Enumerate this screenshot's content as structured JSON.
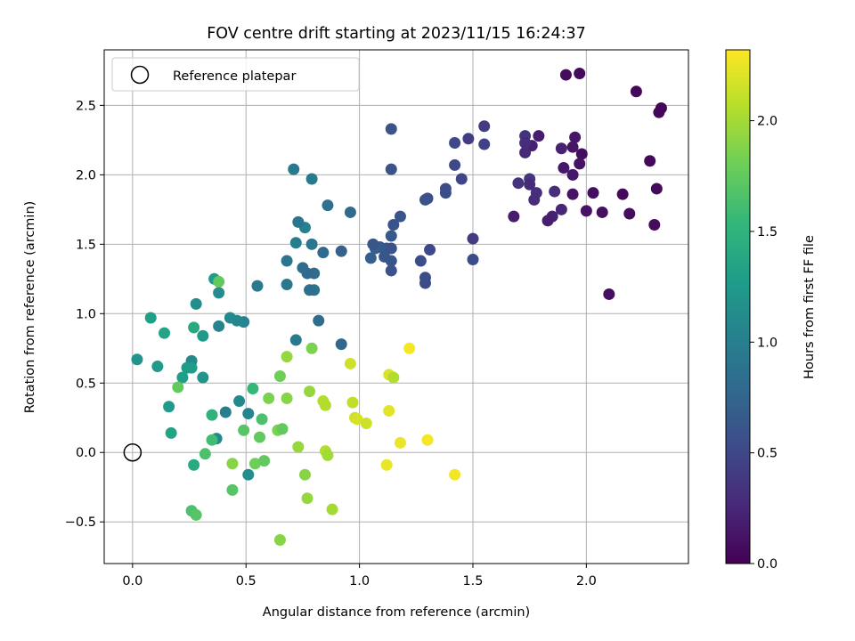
{
  "chart_data": {
    "type": "scatter",
    "title": "FOV centre drift starting at 2023/11/15 16:24:37",
    "xlabel": "Angular distance from reference (arcmin)",
    "ylabel": "Rotation from reference (arcmin)",
    "xlim": [
      -0.125,
      2.45
    ],
    "ylim": [
      -0.8,
      2.9
    ],
    "xticks": [
      0.0,
      0.5,
      1.0,
      1.5,
      2.0
    ],
    "xtick_labels": [
      "0.0",
      "0.5",
      "1.0",
      "1.5",
      "2.0"
    ],
    "yticks": [
      -0.5,
      0.0,
      0.5,
      1.0,
      1.5,
      2.0,
      2.5
    ],
    "ytick_labels": [
      "−0.5",
      "0.0",
      "0.5",
      "1.0",
      "1.5",
      "2.0",
      "2.5"
    ],
    "grid": true,
    "legend": {
      "position": "top-left",
      "entries": [
        {
          "label": "Reference platepar",
          "marker": "open-circle"
        }
      ]
    },
    "reference_point": {
      "x": 0.0,
      "y": 0.0
    },
    "colorbar": {
      "label": "Hours from first FF file",
      "colormap": "viridis",
      "range": [
        0.0,
        2.32
      ],
      "ticks": [
        0.0,
        0.5,
        1.0,
        1.5,
        2.0
      ],
      "tick_labels": [
        "0.0",
        "0.5",
        "1.0",
        "1.5",
        "2.0"
      ]
    },
    "points": [
      {
        "x": 2.33,
        "y": 2.48,
        "h": 0.02
      },
      {
        "x": 2.32,
        "y": 2.45,
        "h": 0.03
      },
      {
        "x": 2.22,
        "y": 2.6,
        "h": 0.04
      },
      {
        "x": 1.97,
        "y": 2.73,
        "h": 0.06
      },
      {
        "x": 1.91,
        "y": 2.72,
        "h": 0.07
      },
      {
        "x": 2.28,
        "y": 2.1,
        "h": 0.05
      },
      {
        "x": 2.31,
        "y": 1.9,
        "h": 0.06
      },
      {
        "x": 2.3,
        "y": 1.64,
        "h": 0.07
      },
      {
        "x": 2.19,
        "y": 1.72,
        "h": 0.08
      },
      {
        "x": 2.16,
        "y": 1.86,
        "h": 0.06
      },
      {
        "x": 2.1,
        "y": 1.14,
        "h": 0.09
      },
      {
        "x": 2.07,
        "y": 1.73,
        "h": 0.1
      },
      {
        "x": 2.03,
        "y": 1.87,
        "h": 0.09
      },
      {
        "x": 2.0,
        "y": 1.74,
        "h": 0.12
      },
      {
        "x": 1.98,
        "y": 2.15,
        "h": 0.08
      },
      {
        "x": 1.97,
        "y": 2.08,
        "h": 0.11
      },
      {
        "x": 1.95,
        "y": 2.27,
        "h": 0.14
      },
      {
        "x": 1.94,
        "y": 2.2,
        "h": 0.13
      },
      {
        "x": 1.94,
        "y": 2.0,
        "h": 0.15
      },
      {
        "x": 1.94,
        "y": 1.86,
        "h": 0.12
      },
      {
        "x": 1.9,
        "y": 2.05,
        "h": 0.15
      },
      {
        "x": 1.89,
        "y": 2.19,
        "h": 0.22
      },
      {
        "x": 1.89,
        "y": 1.75,
        "h": 0.25
      },
      {
        "x": 1.86,
        "y": 1.88,
        "h": 0.3
      },
      {
        "x": 1.85,
        "y": 1.7,
        "h": 0.22
      },
      {
        "x": 1.83,
        "y": 1.67,
        "h": 0.2
      },
      {
        "x": 1.79,
        "y": 2.28,
        "h": 0.18
      },
      {
        "x": 1.78,
        "y": 1.87,
        "h": 0.32
      },
      {
        "x": 1.77,
        "y": 1.82,
        "h": 0.3
      },
      {
        "x": 1.76,
        "y": 2.21,
        "h": 0.21
      },
      {
        "x": 1.75,
        "y": 1.97,
        "h": 0.36
      },
      {
        "x": 1.75,
        "y": 1.93,
        "h": 0.28
      },
      {
        "x": 1.73,
        "y": 2.16,
        "h": 0.26
      },
      {
        "x": 1.73,
        "y": 2.28,
        "h": 0.35
      },
      {
        "x": 1.73,
        "y": 2.23,
        "h": 0.3
      },
      {
        "x": 1.7,
        "y": 1.94,
        "h": 0.35
      },
      {
        "x": 1.68,
        "y": 1.7,
        "h": 0.18
      },
      {
        "x": 1.55,
        "y": 2.35,
        "h": 0.42
      },
      {
        "x": 1.55,
        "y": 2.22,
        "h": 0.45
      },
      {
        "x": 1.5,
        "y": 1.54,
        "h": 0.4
      },
      {
        "x": 1.5,
        "y": 1.39,
        "h": 0.52
      },
      {
        "x": 1.48,
        "y": 2.26,
        "h": 0.42
      },
      {
        "x": 1.45,
        "y": 1.97,
        "h": 0.48
      },
      {
        "x": 1.42,
        "y": 2.07,
        "h": 0.5
      },
      {
        "x": 1.42,
        "y": 2.23,
        "h": 0.5
      },
      {
        "x": 1.38,
        "y": 1.9,
        "h": 0.52
      },
      {
        "x": 1.38,
        "y": 1.87,
        "h": 0.55
      },
      {
        "x": 1.3,
        "y": 1.83,
        "h": 0.53
      },
      {
        "x": 1.29,
        "y": 1.82,
        "h": 0.58
      },
      {
        "x": 1.31,
        "y": 1.46,
        "h": 0.5
      },
      {
        "x": 1.29,
        "y": 1.26,
        "h": 0.55
      },
      {
        "x": 1.29,
        "y": 1.22,
        "h": 0.52
      },
      {
        "x": 1.27,
        "y": 1.38,
        "h": 0.55
      },
      {
        "x": 1.18,
        "y": 1.7,
        "h": 0.62
      },
      {
        "x": 1.15,
        "y": 1.64,
        "h": 0.6
      },
      {
        "x": 1.14,
        "y": 2.33,
        "h": 0.58
      },
      {
        "x": 1.14,
        "y": 2.04,
        "h": 0.58
      },
      {
        "x": 1.14,
        "y": 1.56,
        "h": 0.65
      },
      {
        "x": 1.14,
        "y": 1.47,
        "h": 0.6
      },
      {
        "x": 1.14,
        "y": 1.38,
        "h": 0.62
      },
      {
        "x": 1.14,
        "y": 1.31,
        "h": 0.58
      },
      {
        "x": 1.12,
        "y": 1.47,
        "h": 0.6
      },
      {
        "x": 1.11,
        "y": 1.41,
        "h": 0.62
      },
      {
        "x": 1.09,
        "y": 1.48,
        "h": 0.65
      },
      {
        "x": 1.07,
        "y": 1.47,
        "h": 0.68
      },
      {
        "x": 1.06,
        "y": 1.5,
        "h": 0.62
      },
      {
        "x": 1.05,
        "y": 1.4,
        "h": 0.7
      },
      {
        "x": 0.96,
        "y": 1.73,
        "h": 0.8
      },
      {
        "x": 0.92,
        "y": 1.45,
        "h": 0.72
      },
      {
        "x": 0.92,
        "y": 0.78,
        "h": 0.78
      },
      {
        "x": 0.86,
        "y": 1.78,
        "h": 0.85
      },
      {
        "x": 0.84,
        "y": 1.44,
        "h": 0.8
      },
      {
        "x": 0.82,
        "y": 0.95,
        "h": 0.82
      },
      {
        "x": 0.8,
        "y": 1.29,
        "h": 0.8
      },
      {
        "x": 0.8,
        "y": 1.17,
        "h": 0.88
      },
      {
        "x": 0.79,
        "y": 1.97,
        "h": 0.95
      },
      {
        "x": 0.79,
        "y": 1.5,
        "h": 0.9
      },
      {
        "x": 0.78,
        "y": 1.17,
        "h": 0.84
      },
      {
        "x": 0.77,
        "y": 1.29,
        "h": 0.78
      },
      {
        "x": 0.76,
        "y": 1.62,
        "h": 1.02
      },
      {
        "x": 0.75,
        "y": 1.33,
        "h": 0.82
      },
      {
        "x": 0.73,
        "y": 1.66,
        "h": 0.9
      },
      {
        "x": 0.72,
        "y": 1.51,
        "h": 1.0
      },
      {
        "x": 0.72,
        "y": 0.81,
        "h": 0.95
      },
      {
        "x": 0.71,
        "y": 2.04,
        "h": 0.95
      },
      {
        "x": 0.68,
        "y": 1.38,
        "h": 0.9
      },
      {
        "x": 0.68,
        "y": 1.21,
        "h": 0.92
      },
      {
        "x": 0.55,
        "y": 1.2,
        "h": 0.95
      },
      {
        "x": 0.49,
        "y": 0.94,
        "h": 1.05
      },
      {
        "x": 0.46,
        "y": 0.95,
        "h": 1.08
      },
      {
        "x": 0.43,
        "y": 0.97,
        "h": 1.1
      },
      {
        "x": 0.38,
        "y": 0.91,
        "h": 1.05
      },
      {
        "x": 0.38,
        "y": 1.15,
        "h": 1.12
      },
      {
        "x": 0.36,
        "y": 1.25,
        "h": 1.25
      },
      {
        "x": 0.28,
        "y": 1.07,
        "h": 1.15
      },
      {
        "x": 0.27,
        "y": 0.9,
        "h": 1.4
      },
      {
        "x": 0.31,
        "y": 0.84,
        "h": 1.25
      },
      {
        "x": 0.14,
        "y": 0.86,
        "h": 1.35
      },
      {
        "x": 0.08,
        "y": 0.97,
        "h": 1.3
      },
      {
        "x": 0.02,
        "y": 0.67,
        "h": 1.2
      },
      {
        "x": 0.11,
        "y": 0.62,
        "h": 1.25
      },
      {
        "x": 0.26,
        "y": 0.66,
        "h": 1.1
      },
      {
        "x": 0.24,
        "y": 0.61,
        "h": 1.25
      },
      {
        "x": 0.26,
        "y": 0.61,
        "h": 1.28
      },
      {
        "x": 0.31,
        "y": 0.54,
        "h": 1.2
      },
      {
        "x": 0.22,
        "y": 0.54,
        "h": 1.3
      },
      {
        "x": 0.2,
        "y": 0.47,
        "h": 1.75
      },
      {
        "x": 0.16,
        "y": 0.33,
        "h": 1.25
      },
      {
        "x": 0.17,
        "y": 0.14,
        "h": 1.35
      },
      {
        "x": 0.37,
        "y": 0.1,
        "h": 1.1
      },
      {
        "x": 0.35,
        "y": 0.09,
        "h": 1.6
      },
      {
        "x": 0.32,
        "y": -0.01,
        "h": 1.65
      },
      {
        "x": 0.27,
        "y": -0.09,
        "h": 1.4
      },
      {
        "x": 0.41,
        "y": 0.29,
        "h": 1.0
      },
      {
        "x": 0.35,
        "y": 0.27,
        "h": 1.5
      },
      {
        "x": 0.47,
        "y": 0.37,
        "h": 1.1
      },
      {
        "x": 0.51,
        "y": 0.28,
        "h": 1.05
      },
      {
        "x": 0.53,
        "y": 0.46,
        "h": 1.55
      },
      {
        "x": 0.57,
        "y": 0.24,
        "h": 1.65
      },
      {
        "x": 0.51,
        "y": -0.16,
        "h": 1.15
      },
      {
        "x": 0.49,
        "y": 0.16,
        "h": 1.7
      },
      {
        "x": 0.56,
        "y": 0.11,
        "h": 1.75
      },
      {
        "x": 0.44,
        "y": -0.08,
        "h": 1.9
      },
      {
        "x": 0.44,
        "y": -0.27,
        "h": 1.7
      },
      {
        "x": 0.54,
        "y": -0.08,
        "h": 1.8
      },
      {
        "x": 0.58,
        "y": -0.06,
        "h": 1.75
      },
      {
        "x": 0.26,
        "y": -0.42,
        "h": 1.65
      },
      {
        "x": 0.28,
        "y": -0.45,
        "h": 1.7
      },
      {
        "x": 0.38,
        "y": 1.23,
        "h": 1.75
      },
      {
        "x": 0.6,
        "y": 0.39,
        "h": 1.85
      },
      {
        "x": 0.64,
        "y": 0.16,
        "h": 1.85
      },
      {
        "x": 0.66,
        "y": 0.17,
        "h": 1.75
      },
      {
        "x": 0.65,
        "y": 0.55,
        "h": 1.8
      },
      {
        "x": 0.68,
        "y": 0.39,
        "h": 1.9
      },
      {
        "x": 0.68,
        "y": 0.69,
        "h": 1.95
      },
      {
        "x": 0.73,
        "y": 0.04,
        "h": 1.95
      },
      {
        "x": 0.76,
        "y": -0.16,
        "h": 1.9
      },
      {
        "x": 0.78,
        "y": 0.44,
        "h": 1.95
      },
      {
        "x": 0.77,
        "y": -0.33,
        "h": 1.95
      },
      {
        "x": 0.79,
        "y": 0.75,
        "h": 1.85
      },
      {
        "x": 0.65,
        "y": -0.63,
        "h": 1.9
      },
      {
        "x": 0.84,
        "y": 0.37,
        "h": 2.05
      },
      {
        "x": 0.85,
        "y": 0.34,
        "h": 2.05
      },
      {
        "x": 0.85,
        "y": 0.01,
        "h": 2.05
      },
      {
        "x": 0.86,
        "y": -0.02,
        "h": 2.0
      },
      {
        "x": 0.88,
        "y": -0.41,
        "h": 2.0
      },
      {
        "x": 0.96,
        "y": 0.64,
        "h": 2.15
      },
      {
        "x": 0.97,
        "y": 0.36,
        "h": 2.1
      },
      {
        "x": 0.98,
        "y": 0.25,
        "h": 2.15
      },
      {
        "x": 0.99,
        "y": 0.24,
        "h": 2.18
      },
      {
        "x": 1.03,
        "y": 0.21,
        "h": 2.15
      },
      {
        "x": 1.12,
        "y": -0.09,
        "h": 2.25
      },
      {
        "x": 1.13,
        "y": 0.3,
        "h": 2.22
      },
      {
        "x": 1.13,
        "y": 0.56,
        "h": 2.2
      },
      {
        "x": 1.15,
        "y": 0.54,
        "h": 2.05
      },
      {
        "x": 1.18,
        "y": 0.07,
        "h": 2.25
      },
      {
        "x": 1.22,
        "y": 0.75,
        "h": 2.3
      },
      {
        "x": 1.3,
        "y": 0.09,
        "h": 2.3
      },
      {
        "x": 1.42,
        "y": -0.16,
        "h": 2.28
      }
    ]
  }
}
